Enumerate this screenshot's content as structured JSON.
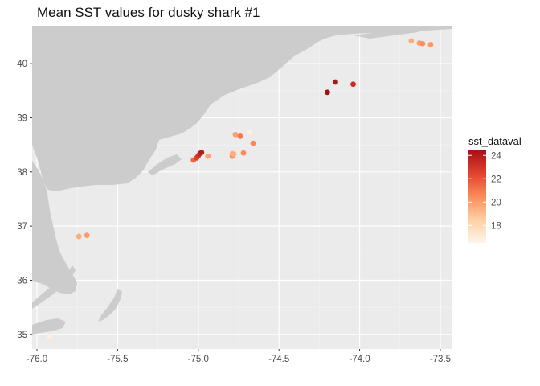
{
  "title": "Mean SST values for dusky shark #1",
  "chart_data": {
    "type": "scatter",
    "title": "Mean SST values for dusky shark #1",
    "xlabel": "",
    "ylabel": "",
    "xlim": [
      -76.03,
      -73.43
    ],
    "ylim": [
      34.73,
      40.7
    ],
    "x_ticks": [
      -76.0,
      -75.5,
      -75.0,
      -74.5,
      -74.0,
      -73.5
    ],
    "x_tick_labels": [
      "-76.0",
      "-75.5",
      "-75.0",
      "-74.5",
      "-74.0",
      "-73.5"
    ],
    "y_ticks": [
      35,
      36,
      37,
      38,
      39,
      40
    ],
    "y_tick_labels": [
      "35",
      "36",
      "37",
      "38",
      "39",
      "40"
    ],
    "grid": true,
    "color_scale": {
      "name": "sst_dataval",
      "min": 16.5,
      "max": 24.5,
      "low_color": "#fff5eb",
      "mid_color": "#fb8a5a",
      "high_color": "#a50f15",
      "breaks": [
        18,
        20,
        22,
        24
      ],
      "break_labels": [
        "18",
        "20",
        "22",
        "24"
      ]
    },
    "legend_position": "right",
    "points": [
      {
        "x": -75.92,
        "y": 34.96,
        "sst": 16.8
      },
      {
        "x": -75.74,
        "y": 36.81,
        "sst": 19.5
      },
      {
        "x": -75.69,
        "y": 36.83,
        "sst": 20.0
      },
      {
        "x": -75.03,
        "y": 38.22,
        "sst": 21.5
      },
      {
        "x": -75.01,
        "y": 38.26,
        "sst": 22.5
      },
      {
        "x": -75.0,
        "y": 38.3,
        "sst": 23.0
      },
      {
        "x": -74.99,
        "y": 38.34,
        "sst": 23.5
      },
      {
        "x": -74.98,
        "y": 38.36,
        "sst": 24.0
      },
      {
        "x": -74.94,
        "y": 38.29,
        "sst": 19.8
      },
      {
        "x": -74.79,
        "y": 38.29,
        "sst": 20.3
      },
      {
        "x": -74.79,
        "y": 38.34,
        "sst": 19.2
      },
      {
        "x": -74.78,
        "y": 38.33,
        "sst": 19.5
      },
      {
        "x": -74.77,
        "y": 38.69,
        "sst": 19.9
      },
      {
        "x": -74.74,
        "y": 38.66,
        "sst": 21.0
      },
      {
        "x": -74.72,
        "y": 38.35,
        "sst": 20.5
      },
      {
        "x": -74.68,
        "y": 38.73,
        "sst": 16.8
      },
      {
        "x": -74.66,
        "y": 38.53,
        "sst": 20.6
      },
      {
        "x": -74.2,
        "y": 39.47,
        "sst": 24.5
      },
      {
        "x": -74.15,
        "y": 39.66,
        "sst": 24.2
      },
      {
        "x": -74.04,
        "y": 39.62,
        "sst": 23.3
      },
      {
        "x": -73.68,
        "y": 40.42,
        "sst": 19.5
      },
      {
        "x": -73.63,
        "y": 40.38,
        "sst": 19.9
      },
      {
        "x": -73.61,
        "y": 40.37,
        "sst": 20.4
      },
      {
        "x": -73.56,
        "y": 40.35,
        "sst": 20.1
      }
    ]
  },
  "colors": {
    "panel_bg": "#ebebeb",
    "land": "#cccccc",
    "grid_major": "#ffffff",
    "grid_minor": "#f4f4f4"
  }
}
